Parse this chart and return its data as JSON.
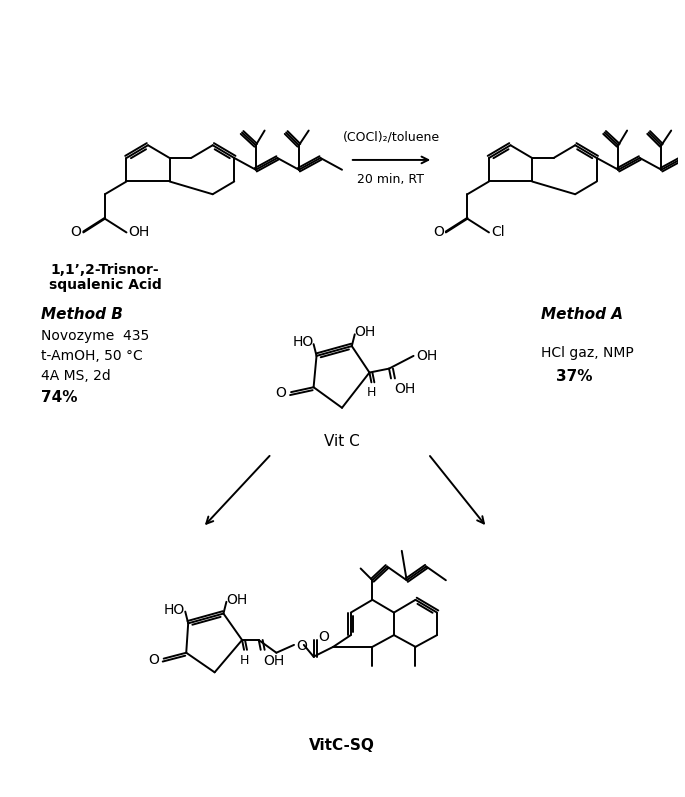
{
  "background_color": "#ffffff",
  "line_color": "#000000",
  "lw": 1.4,
  "reaction_arrow_top": "(COCl)₂/toluene",
  "reaction_arrow_bottom": "20 min, RT",
  "method_b_label": "Method B",
  "method_b_line1": "Novozyme  435",
  "method_b_line2": "t-AmOH, 50 °C",
  "method_b_line3": "4A MS, 2d",
  "method_b_yield": "74%",
  "method_a_label": "Method A",
  "method_a_line1": "HCl gaz, NMP",
  "method_a_yield": "37%",
  "compound1_label_line1": "1,1’,2-Trisnor-",
  "compound1_label_line2": "squalenic Acid",
  "vitc_label": "Vit C",
  "product_label": "VitC-SQ"
}
